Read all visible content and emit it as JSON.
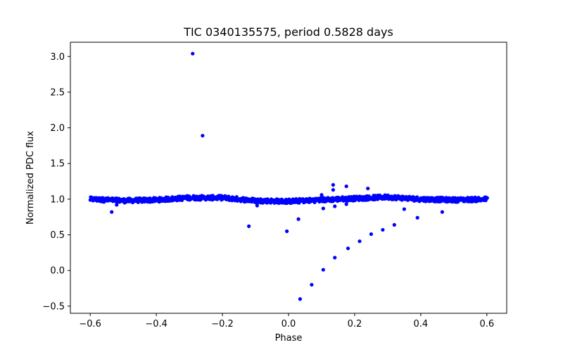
{
  "chart_data": {
    "type": "scatter",
    "title": "TIC 0340135575, period 0.5828 days",
    "xlabel": "Phase",
    "ylabel": "Normalized PDC flux",
    "xlim": [
      -0.66,
      0.66
    ],
    "ylim": [
      -0.6,
      3.2
    ],
    "xticks": [
      -0.6,
      -0.4,
      -0.2,
      0.0,
      0.2,
      0.4,
      0.6
    ],
    "xtick_labels": [
      "−0.6",
      "−0.4",
      "−0.2",
      "0.0",
      "0.2",
      "0.4",
      "0.6"
    ],
    "yticks": [
      -0.5,
      0.0,
      0.5,
      1.0,
      1.5,
      2.0,
      2.5,
      3.0
    ],
    "ytick_labels": [
      "−0.5",
      "0.0",
      "0.5",
      "1.0",
      "1.5",
      "2.0",
      "2.5",
      "3.0"
    ],
    "grid": false,
    "point_color": "#0000ff",
    "baseline": {
      "description": "dense band of points around 1.0",
      "x_range": [
        -0.6,
        0.6
      ],
      "trend": [
        [
          -0.6,
          1.0
        ],
        [
          -0.5,
          0.98
        ],
        [
          -0.4,
          0.99
        ],
        [
          -0.3,
          1.02
        ],
        [
          -0.2,
          1.02
        ],
        [
          -0.1,
          0.98
        ],
        [
          0.0,
          0.97
        ],
        [
          0.1,
          0.99
        ],
        [
          0.2,
          1.01
        ],
        [
          0.3,
          1.03
        ],
        [
          0.4,
          1.0
        ],
        [
          0.5,
          0.99
        ],
        [
          0.6,
          1.0
        ]
      ],
      "scatter": 0.03
    },
    "outliers": [
      {
        "x": -0.29,
        "y": 3.04
      },
      {
        "x": -0.26,
        "y": 1.89
      },
      {
        "x": -0.535,
        "y": 0.82
      },
      {
        "x": -0.52,
        "y": 0.92
      },
      {
        "x": -0.12,
        "y": 0.62
      },
      {
        "x": -0.095,
        "y": 0.91
      },
      {
        "x": -0.005,
        "y": 0.55
      },
      {
        "x": 0.03,
        "y": 0.72
      },
      {
        "x": 0.035,
        "y": -0.4
      },
      {
        "x": 0.07,
        "y": -0.2
      },
      {
        "x": 0.1,
        "y": 1.06
      },
      {
        "x": 0.105,
        "y": 0.87
      },
      {
        "x": 0.105,
        "y": 0.01
      },
      {
        "x": 0.135,
        "y": 1.2
      },
      {
        "x": 0.135,
        "y": 1.13
      },
      {
        "x": 0.14,
        "y": 0.18
      },
      {
        "x": 0.14,
        "y": 0.9
      },
      {
        "x": 0.175,
        "y": 1.18
      },
      {
        "x": 0.175,
        "y": 0.93
      },
      {
        "x": 0.18,
        "y": 0.31
      },
      {
        "x": 0.215,
        "y": 0.41
      },
      {
        "x": 0.24,
        "y": 1.15
      },
      {
        "x": 0.25,
        "y": 0.51
      },
      {
        "x": 0.285,
        "y": 0.57
      },
      {
        "x": 0.32,
        "y": 0.64
      },
      {
        "x": 0.35,
        "y": 0.86
      },
      {
        "x": 0.39,
        "y": 0.74
      },
      {
        "x": 0.465,
        "y": 0.82
      }
    ]
  }
}
